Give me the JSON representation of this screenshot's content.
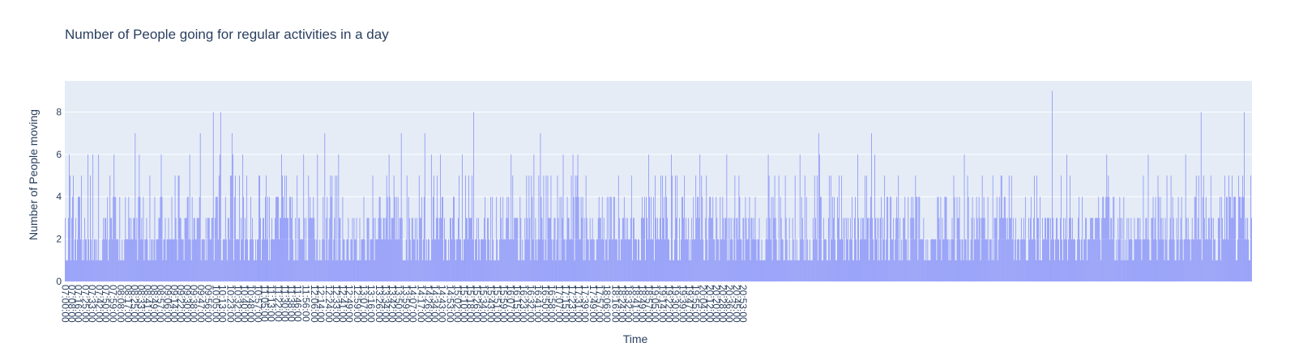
{
  "chart_data": {
    "type": "bar",
    "title": "Number of People going for regular activities in a day",
    "xlabel": "Time",
    "ylabel": "Number of People moving",
    "ylim": [
      0,
      9.47
    ],
    "yticks": [
      0,
      2,
      4,
      6,
      8
    ],
    "x_range": [
      "07:00:00",
      "20:59:00"
    ],
    "x_step_minutes": 1,
    "grid": true,
    "colors": {
      "bar": "#636efa",
      "plot_bg": "#e5ecf6",
      "grid": "#ffffff",
      "text": "#2a3f5f"
    },
    "xticks": [
      "07:00:00",
      "07:08:00",
      "07:16:00",
      "07:25:00",
      "07:33:00",
      "07:42:00",
      "07:50:00",
      "07:59:00",
      "08:08:00",
      "08:17:00",
      "08:25:00",
      "08:33:00",
      "08:41:00",
      "08:49:00",
      "08:57:00",
      "09:06:00",
      "09:14:00",
      "09:22:00",
      "09:30:00",
      "09:38:00",
      "09:47:00",
      "09:56:00",
      "10:05:00",
      "10:13:00",
      "10:23:00",
      "10:32:00",
      "10:40:00",
      "10:48:00",
      "10:57:00",
      "11:05:00",
      "11:13:00",
      "11:22:00",
      "11:30:00",
      "11:38:00",
      "11:46:00",
      "11:56:00",
      "12:06:00",
      "12:14:00",
      "12:24:00",
      "12:33:00",
      "12:41:00",
      "12:49:00",
      "12:59:00",
      "13:07:00",
      "13:16:00",
      "13:26:00",
      "13:34:00",
      "13:42:00",
      "13:50:00",
      "13:59:00",
      "14:07:00",
      "14:17:00",
      "14:26:00",
      "14:34:00",
      "14:43:00",
      "14:53:00",
      "15:02:00",
      "15:10:00",
      "15:18:00",
      "15:26:00",
      "15:34:00",
      "15:43:00",
      "15:51:00",
      "15:59:00",
      "16:07:00",
      "16:15:00",
      "16:23:00",
      "16:32:00",
      "16:41:00",
      "16:50:00",
      "16:58:00",
      "17:07:00",
      "17:15:00",
      "17:23:00",
      "17:31:00",
      "17:39:00",
      "17:49:00",
      "17:57:00",
      "18:06:00",
      "18:16:00",
      "18:24:00",
      "18:32:00",
      "18:41:00",
      "18:49:00",
      "18:57:00",
      "19:05:00",
      "19:14:00",
      "19:22:00",
      "19:30:00",
      "19:39:00",
      "19:47:00",
      "19:55:00",
      "20:04:00",
      "20:12:00",
      "20:20:00",
      "20:28:00",
      "20:36:00",
      "20:45:00",
      "20:53:00"
    ],
    "values": [
      3,
      1,
      1,
      1,
      3,
      6,
      5,
      1,
      3,
      4,
      5,
      1,
      2,
      3,
      1,
      2,
      4,
      4,
      4,
      2,
      5,
      1,
      2,
      1,
      3,
      2,
      2,
      1,
      6,
      2,
      1,
      5,
      2,
      1,
      6,
      1,
      2,
      2,
      1,
      2,
      1,
      6,
      1,
      1,
      1,
      1,
      2,
      3,
      2,
      3,
      3,
      2,
      4,
      1,
      2,
      5,
      3,
      3,
      2,
      4,
      6,
      4,
      4,
      2,
      2,
      2,
      1,
      4,
      1,
      1,
      2,
      1,
      1,
      2,
      4,
      2,
      2,
      2,
      4,
      3,
      2,
      3,
      2,
      2,
      3,
      3,
      7,
      2,
      3,
      1,
      4,
      6,
      4,
      2,
      3,
      2,
      4,
      1,
      2,
      2,
      3,
      2,
      1,
      1,
      5,
      1,
      2,
      2,
      1,
      2,
      4,
      1,
      2,
      2,
      2,
      3,
      3,
      4,
      6,
      4,
      1,
      2,
      2,
      3,
      1,
      2,
      2,
      3,
      2,
      2,
      2,
      4,
      2,
      2,
      2,
      5,
      3,
      2,
      1,
      5,
      5,
      3,
      3,
      2,
      2,
      2,
      1,
      3,
      3,
      3,
      4,
      4,
      2,
      6,
      2,
      1,
      4,
      2,
      3,
      3,
      2,
      2,
      3,
      3,
      3,
      4,
      7,
      1,
      2,
      2,
      2,
      2,
      1,
      3,
      1,
      3,
      3,
      3,
      2,
      2,
      3,
      3,
      8,
      1,
      3,
      4,
      4,
      4,
      2,
      5,
      6,
      8,
      1,
      1,
      2,
      2,
      2,
      4,
      2,
      1,
      3,
      3,
      2,
      5,
      5,
      7,
      6,
      1,
      4,
      5,
      2,
      2,
      2,
      2,
      5,
      1,
      3,
      2,
      6,
      4,
      1,
      3,
      2,
      5,
      2,
      1,
      1,
      2,
      4,
      2,
      3,
      2,
      1,
      1,
      2,
      1,
      2,
      2,
      5,
      5,
      3,
      1,
      2,
      3,
      3,
      2,
      4,
      5,
      2,
      4,
      1,
      4,
      1,
      2,
      3,
      2,
      2,
      2,
      3,
      4,
      4,
      4,
      4,
      2,
      3,
      3,
      6,
      5,
      4,
      3,
      5,
      3,
      5,
      3,
      3,
      1,
      4,
      4,
      3,
      4,
      2,
      1,
      1,
      3,
      1,
      5,
      1,
      3,
      3,
      2,
      2,
      2,
      2,
      6,
      3,
      1,
      3,
      1,
      1,
      5,
      3,
      4,
      3,
      3,
      3,
      4,
      3,
      2,
      1,
      2,
      6,
      1,
      1,
      2,
      1,
      1,
      2,
      4,
      2,
      7,
      1,
      3,
      4,
      1,
      2,
      3,
      5,
      4,
      5,
      1,
      2,
      3,
      5,
      1,
      5,
      1,
      6,
      3,
      3,
      1,
      1,
      4,
      2,
      2,
      1,
      1,
      2,
      2,
      3,
      1,
      1,
      2,
      2,
      3,
      1,
      3,
      2,
      2,
      3,
      1,
      1,
      1,
      3,
      1,
      2,
      2,
      2,
      4,
      2,
      1,
      1,
      3,
      3,
      3,
      1,
      2,
      2,
      2,
      5,
      3,
      1,
      3,
      2,
      2,
      2,
      3,
      4,
      4,
      3,
      2,
      2,
      3,
      3,
      2,
      3,
      5,
      4,
      2,
      6,
      4,
      2,
      3,
      3,
      3,
      5,
      4,
      2,
      4,
      2,
      4,
      2,
      3,
      3,
      7,
      3,
      1,
      1,
      1,
      1,
      2,
      5,
      1,
      4,
      3,
      2,
      1,
      3,
      3,
      2,
      2,
      3,
      1,
      3,
      2,
      1,
      5,
      3,
      3,
      4,
      1,
      2,
      4,
      7,
      1,
      2,
      1,
      2,
      2,
      1,
      1,
      6,
      2,
      4,
      5,
      2,
      2,
      3,
      5,
      3,
      2,
      3,
      6,
      3,
      4,
      4,
      1,
      3,
      2,
      2,
      1,
      1,
      2,
      1,
      3,
      3,
      2,
      3,
      4,
      4,
      2,
      1,
      2,
      2,
      3,
      5,
      2,
      2,
      1,
      6,
      1,
      2,
      2,
      5,
      3,
      3,
      2,
      5,
      3,
      3,
      3,
      5,
      2,
      8,
      1,
      2,
      2,
      3,
      1,
      3,
      2,
      1,
      2,
      2,
      2,
      2,
      3,
      4,
      2,
      1,
      3,
      3,
      2,
      1,
      4,
      1,
      4,
      2,
      1,
      1,
      1,
      4,
      2,
      1,
      1,
      2,
      4,
      3,
      2,
      4,
      2,
      2,
      2,
      3,
      4,
      3,
      4,
      2,
      2,
      6,
      2,
      5,
      2,
      3,
      3,
      3,
      3,
      3,
      1,
      1,
      4,
      3,
      1,
      2,
      1,
      1,
      3,
      2,
      5,
      3,
      2,
      5,
      3,
      1,
      5,
      4,
      2,
      6,
      1,
      3,
      2,
      1,
      2,
      5,
      2,
      7,
      4,
      3,
      2,
      5,
      1,
      2,
      5,
      1,
      5,
      3,
      3,
      3,
      5,
      2,
      1,
      2,
      3,
      3,
      1,
      2,
      5,
      3,
      1,
      4,
      1,
      4,
      3,
      6,
      2,
      2,
      1,
      2,
      4,
      3,
      3,
      2,
      2,
      5,
      2,
      6,
      4,
      1,
      5,
      4,
      5,
      6,
      4,
      2,
      2,
      4,
      3,
      4,
      1,
      3,
      1,
      5,
      3,
      2,
      2,
      1,
      3,
      2,
      2,
      3,
      2,
      2,
      1,
      1,
      2,
      2,
      3,
      4,
      3,
      3,
      2,
      4,
      2,
      3,
      1,
      2,
      2,
      4,
      1,
      4,
      2,
      4,
      4,
      2,
      2,
      4,
      4,
      2,
      2,
      2,
      1,
      5,
      3,
      1,
      2,
      2,
      3,
      3,
      4,
      2,
      3,
      2,
      3,
      2,
      2,
      2,
      3,
      5,
      1,
      3,
      3,
      2,
      2,
      2,
      1,
      2,
      2,
      1,
      1,
      3,
      4,
      3,
      3,
      4,
      1,
      4,
      3,
      2,
      6,
      4,
      2,
      4,
      2,
      2,
      4,
      1,
      5,
      3,
      2,
      3,
      2,
      2,
      3,
      5,
      2,
      5,
      3,
      4,
      2,
      5,
      4,
      3,
      2,
      2,
      1,
      1,
      6,
      5,
      1,
      1,
      2,
      5,
      3,
      5,
      1,
      1,
      3,
      1,
      2,
      4,
      4,
      3,
      5,
      2,
      3,
      2,
      2,
      3,
      1,
      2,
      1,
      3,
      2,
      4,
      2,
      2,
      5,
      3,
      4,
      4,
      3,
      6,
      2,
      5,
      4,
      2,
      1,
      1,
      3,
      5,
      2,
      1,
      3,
      4,
      4,
      3,
      3,
      4,
      2,
      2,
      1,
      4,
      3,
      2,
      2,
      1,
      4,
      2,
      2,
      4,
      3,
      2,
      3,
      3,
      6,
      1,
      3,
      1,
      3,
      2,
      3,
      2,
      1,
      3,
      5,
      1,
      3,
      3,
      2,
      5,
      4,
      2,
      2,
      1,
      3,
      3,
      1,
      4,
      3,
      2,
      2,
      3,
      4,
      1,
      3,
      3,
      2,
      3,
      2,
      4,
      2,
      1,
      2,
      2,
      3,
      1,
      1,
      2,
      1,
      1,
      1,
      1,
      2,
      3,
      2,
      6,
      5,
      3,
      2,
      4,
      1,
      4,
      3,
      5,
      3,
      2,
      1,
      1,
      5,
      1,
      4,
      3,
      2,
      2,
      1,
      1,
      5,
      3,
      2,
      1,
      1,
      3,
      1,
      1,
      1,
      3,
      2,
      1,
      5,
      1,
      2,
      1,
      1,
      1,
      6,
      2,
      4,
      3,
      2,
      1,
      5,
      1,
      4,
      2,
      1,
      1,
      2,
      1,
      1,
      1,
      3,
      2,
      5,
      3,
      2,
      5,
      1,
      7,
      6,
      4,
      4,
      1,
      1,
      3,
      2,
      2,
      2,
      1,
      1,
      3,
      5,
      1,
      5,
      2,
      4,
      3,
      4,
      2,
      1,
      1,
      4,
      3,
      5,
      2,
      2,
      5,
      2,
      3,
      1,
      3,
      1,
      3,
      2,
      3,
      1,
      2,
      3,
      2,
      4,
      1,
      1,
      3,
      4,
      2,
      1,
      6,
      3,
      1,
      2,
      3,
      2,
      3,
      3,
      2,
      5,
      2,
      5,
      3,
      3,
      1,
      3,
      4,
      7,
      3,
      2,
      1,
      6,
      3,
      2,
      3,
      1,
      3,
      1,
      3,
      4,
      1,
      3,
      2,
      5,
      1,
      2,
      4,
      4,
      1,
      1,
      4,
      4,
      2,
      2,
      3,
      1,
      2,
      3,
      4,
      3,
      5,
      1,
      3,
      1,
      2,
      1,
      3,
      3,
      4,
      2,
      2,
      1,
      4,
      1,
      1,
      3,
      4,
      3,
      4,
      3,
      2,
      5,
      4,
      4,
      1,
      4,
      4,
      2,
      2,
      2,
      2,
      3,
      1,
      1,
      2,
      1,
      2,
      1,
      1,
      1,
      2,
      2,
      2,
      2,
      2,
      2,
      2,
      1,
      4,
      4,
      3,
      2,
      4,
      1,
      3,
      2,
      2,
      4,
      4,
      4,
      2,
      2,
      1,
      2,
      1,
      2,
      3,
      2,
      5,
      4,
      1,
      1,
      4,
      3,
      3,
      4,
      2,
      1,
      2,
      2,
      1,
      6,
      2,
      2,
      1,
      5,
      4,
      1,
      1,
      2,
      3,
      4,
      1,
      3,
      2,
      2,
      4,
      3,
      2,
      4,
      3,
      1,
      3,
      5,
      3,
      4,
      3,
      2,
      2,
      2,
      4,
      1,
      2,
      2,
      2,
      1,
      5,
      1,
      3,
      3,
      3,
      4,
      1,
      2,
      4,
      3,
      5,
      5,
      3,
      3,
      4,
      4,
      3,
      2,
      3,
      2,
      5,
      3,
      3,
      5,
      2,
      3,
      1,
      2,
      3,
      1,
      2,
      2,
      2,
      1,
      2,
      3,
      2,
      2,
      3,
      2,
      4,
      1,
      1,
      1,
      3,
      2,
      3,
      4,
      2,
      2,
      3,
      5,
      2,
      1,
      5,
      3,
      3,
      1,
      4,
      1,
      1,
      3,
      2,
      2,
      3,
      3,
      2,
      3,
      3,
      3,
      1,
      3,
      2,
      9,
      3,
      2,
      1,
      2,
      3,
      3,
      2,
      2,
      1,
      3,
      5,
      2,
      1,
      3,
      2,
      3,
      2,
      6,
      1,
      2,
      3,
      5,
      3,
      2,
      3,
      2,
      2,
      2,
      1,
      1,
      2,
      3,
      4,
      2,
      1,
      2,
      4,
      1,
      2,
      2,
      3,
      3,
      1,
      2,
      2,
      2,
      3,
      3,
      3,
      3,
      2,
      2,
      3,
      3,
      3,
      3,
      4,
      3,
      2,
      1,
      3,
      4,
      4,
      3,
      3,
      4,
      6,
      4,
      5,
      4,
      2,
      3,
      3,
      2,
      4,
      4,
      1,
      1,
      2,
      1,
      3,
      2,
      4,
      3,
      1,
      3,
      1,
      4,
      1,
      2,
      1,
      3,
      1,
      3,
      2,
      2,
      3,
      2,
      1,
      1,
      3,
      2,
      2,
      2,
      3,
      3,
      2,
      3,
      2,
      1,
      2,
      5,
      2,
      2,
      3,
      3,
      2,
      6,
      2,
      1,
      1,
      3,
      3,
      4,
      2,
      3,
      4,
      2,
      1,
      5,
      4,
      2,
      4,
      3,
      2,
      3,
      2,
      1,
      3,
      2,
      5,
      1,
      1,
      2,
      3,
      5,
      2,
      4,
      3,
      2,
      1,
      1,
      3,
      2,
      4,
      1,
      2,
      3,
      4,
      2,
      1,
      2,
      2,
      6,
      3,
      2,
      3,
      2,
      2,
      1,
      2,
      3,
      2,
      2,
      4,
      4,
      5,
      2,
      3,
      5,
      2,
      2,
      8,
      1,
      4,
      5,
      3,
      2,
      4,
      2,
      2,
      3,
      3,
      2,
      5,
      3,
      1,
      3,
      2,
      2,
      1,
      1,
      1,
      3,
      3,
      4,
      1,
      4,
      3,
      2,
      2,
      5,
      2,
      4,
      4,
      2,
      5,
      4,
      4,
      3,
      5,
      3,
      4,
      4,
      4,
      1,
      1,
      2,
      5,
      4,
      4,
      3,
      4,
      5,
      4,
      8,
      2,
      3,
      2,
      3,
      2,
      1,
      1,
      5,
      3
    ]
  }
}
